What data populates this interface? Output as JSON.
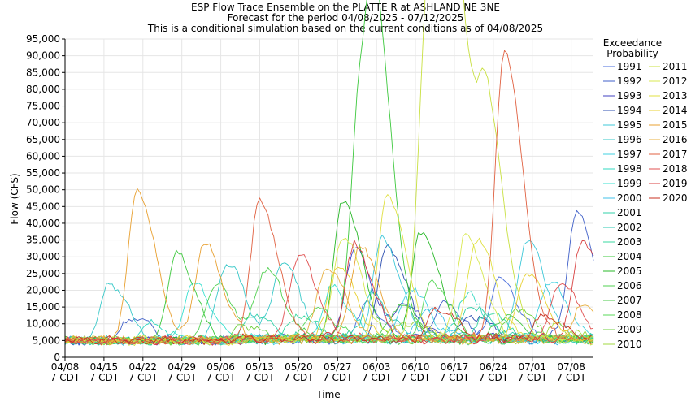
{
  "chart_data": {
    "type": "line",
    "title": "ESP Flow Trace Ensemble on the PLATTE R at ASHLAND NE 3NE",
    "subtitle": "Forecast for the period 04/08/2025 - 07/12/2025",
    "subtitle2": "This is a conditional simulation based on the current conditions as of 04/08/2025",
    "xlabel": "Time",
    "ylabel": "Flow (CFS)",
    "legend_title": "Exceedance\nProbability",
    "legend_position": "right",
    "x_start": "2025-04-08",
    "x_end": "2025-07-12",
    "ylim": [
      0,
      95000
    ],
    "yticks": [
      0,
      5000,
      10000,
      15000,
      20000,
      25000,
      30000,
      35000,
      40000,
      45000,
      50000,
      55000,
      60000,
      65000,
      70000,
      75000,
      80000,
      85000,
      90000,
      95000
    ],
    "ytick_labels": [
      "0",
      "5,000",
      "10,000",
      "15,000",
      "20,000",
      "25,000",
      "30,000",
      "35,000",
      "40,000",
      "45,000",
      "50,000",
      "55,000",
      "60,000",
      "65,000",
      "70,000",
      "75,000",
      "80,000",
      "85,000",
      "90,000",
      "95,000"
    ],
    "xticks": [
      {
        "date": "2025-04-08",
        "line1": "04/08",
        "line2": "7 CDT"
      },
      {
        "date": "2025-04-15",
        "line1": "04/15",
        "line2": "7 CDT"
      },
      {
        "date": "2025-04-22",
        "line1": "04/22",
        "line2": "7 CDT"
      },
      {
        "date": "2025-04-29",
        "line1": "04/29",
        "line2": "7 CDT"
      },
      {
        "date": "2025-05-06",
        "line1": "05/06",
        "line2": "7 CDT"
      },
      {
        "date": "2025-05-13",
        "line1": "05/13",
        "line2": "7 CDT"
      },
      {
        "date": "2025-05-20",
        "line1": "05/20",
        "line2": "7 CDT"
      },
      {
        "date": "2025-05-27",
        "line1": "05/27",
        "line2": "7 CDT"
      },
      {
        "date": "2025-06-03",
        "line1": "06/03",
        "line2": "7 CDT"
      },
      {
        "date": "2025-06-10",
        "line1": "06/10",
        "line2": "7 CDT"
      },
      {
        "date": "2025-06-17",
        "line1": "06/17",
        "line2": "7 CDT"
      },
      {
        "date": "2025-06-24",
        "line1": "06/24",
        "line2": "7 CDT"
      },
      {
        "date": "2025-07-01",
        "line1": "07/01",
        "line2": "7 CDT"
      },
      {
        "date": "2025-07-08",
        "line1": "07/08",
        "line2": "7 CDT"
      }
    ],
    "grid": true,
    "base_flow": 5000,
    "series": [
      {
        "name": "1991",
        "color": "#4a6edc",
        "peaks": [
          [
            "2025-06-25",
            23000
          ],
          [
            "2025-06-01",
            15000
          ]
        ]
      },
      {
        "name": "1992",
        "color": "#3f5fc8",
        "peaks": [
          [
            "2025-07-09",
            43000
          ],
          [
            "2025-04-20",
            12000
          ],
          [
            "2025-06-15",
            16000
          ]
        ]
      },
      {
        "name": "1993",
        "color": "#4040c0",
        "peaks": [
          [
            "2025-05-30",
            32000
          ],
          [
            "2025-06-08",
            15000
          ]
        ]
      },
      {
        "name": "1994",
        "color": "#2d4fb0",
        "peaks": [
          [
            "2025-06-05",
            33000
          ],
          [
            "2025-06-20",
            12000
          ]
        ]
      },
      {
        "name": "1995",
        "color": "#3fc8d8",
        "peaks": [
          [
            "2025-06-04",
            35000
          ],
          [
            "2025-06-30",
            35000
          ]
        ]
      },
      {
        "name": "1996",
        "color": "#38c8c8",
        "peaks": [
          [
            "2025-04-16",
            22000
          ],
          [
            "2025-05-07",
            28000
          ],
          [
            "2025-05-17",
            28000
          ]
        ]
      },
      {
        "name": "1997",
        "color": "#40d0e0",
        "peaks": [
          [
            "2025-06-09",
            20000
          ],
          [
            "2025-07-04",
            22000
          ]
        ]
      },
      {
        "name": "1998",
        "color": "#30d8c0",
        "peaks": [
          [
            "2025-06-19",
            18000
          ],
          [
            "2025-04-23",
            10000
          ]
        ]
      },
      {
        "name": "1999",
        "color": "#38e0d0",
        "peaks": [
          [
            "2025-05-01",
            22000
          ],
          [
            "2025-05-26",
            20000
          ]
        ]
      },
      {
        "name": "2000",
        "color": "#40c0e8",
        "peaks": [
          [
            "2025-06-12",
            14000
          ]
        ]
      },
      {
        "name": "2001",
        "color": "#30d0a8",
        "peaks": [
          [
            "2025-06-20",
            15000
          ],
          [
            "2025-05-12",
            12000
          ]
        ]
      },
      {
        "name": "2002",
        "color": "#28c8b0",
        "peaks": [
          [
            "2025-06-02",
            18000
          ]
        ]
      },
      {
        "name": "2003",
        "color": "#38d8a0",
        "peaks": [
          [
            "2025-06-23",
            13000
          ],
          [
            "2025-05-20",
            12000
          ]
        ]
      },
      {
        "name": "2004",
        "color": "#3cc83c",
        "peaks": [
          [
            "2025-05-31",
            76000
          ],
          [
            "2025-06-03",
            69000
          ],
          [
            "2025-04-28",
            31000
          ]
        ]
      },
      {
        "name": "2005",
        "color": "#28b828",
        "peaks": [
          [
            "2025-05-28",
            47000
          ],
          [
            "2025-06-11",
            37000
          ]
        ]
      },
      {
        "name": "2006",
        "color": "#50d050",
        "peaks": [
          [
            "2025-05-14",
            26000
          ],
          [
            "2025-05-05",
            22000
          ]
        ]
      },
      {
        "name": "2007",
        "color": "#48c848",
        "peaks": [
          [
            "2025-06-07",
            15000
          ],
          [
            "2025-06-26",
            12000
          ]
        ]
      },
      {
        "name": "2008",
        "color": "#58d858",
        "peaks": [
          [
            "2025-06-13",
            22000
          ],
          [
            "2025-05-23",
            14000
          ]
        ]
      },
      {
        "name": "2009",
        "color": "#70d040",
        "peaks": [
          [
            "2025-06-28",
            14000
          ],
          [
            "2025-05-10",
            9000
          ]
        ]
      },
      {
        "name": "2010",
        "color": "#a0d840",
        "peaks": [
          [
            "2025-06-08",
            10000
          ],
          [
            "2025-07-05",
            9000
          ]
        ]
      },
      {
        "name": "2011",
        "color": "#c8e040",
        "peaks": [
          [
            "2025-06-12",
            81000
          ],
          [
            "2025-06-14",
            82000
          ],
          [
            "2025-06-18",
            71000
          ],
          [
            "2025-06-23",
            62000
          ]
        ]
      },
      {
        "name": "2012",
        "color": "#d8e850",
        "peaks": [
          [
            "2025-05-28",
            36000
          ],
          [
            "2025-06-19",
            36000
          ]
        ]
      },
      {
        "name": "2013",
        "color": "#e0e040",
        "peaks": [
          [
            "2025-06-05",
            48000
          ],
          [
            "2025-06-21",
            35000
          ]
        ]
      },
      {
        "name": "2014",
        "color": "#e8d030",
        "peaks": [
          [
            "2025-05-27",
            27000
          ],
          [
            "2025-06-30",
            25000
          ]
        ]
      },
      {
        "name": "2015",
        "color": "#e8a030",
        "peaks": [
          [
            "2025-04-21",
            50000
          ],
          [
            "2025-05-03",
            34000
          ],
          [
            "2025-05-31",
            33000
          ]
        ]
      },
      {
        "name": "2016",
        "color": "#e8b040",
        "peaks": [
          [
            "2025-05-25",
            27000
          ],
          [
            "2025-07-10",
            15000
          ]
        ]
      },
      {
        "name": "2017",
        "color": "#e06040",
        "peaks": [
          [
            "2025-06-26",
            91000
          ],
          [
            "2025-05-13",
            46000
          ]
        ]
      },
      {
        "name": "2018",
        "color": "#e05050",
        "peaks": [
          [
            "2025-05-20",
            30000
          ],
          [
            "2025-07-06",
            22000
          ]
        ]
      },
      {
        "name": "2019",
        "color": "#d84040",
        "peaks": [
          [
            "2025-05-30",
            33000
          ],
          [
            "2025-07-10",
            35000
          ]
        ]
      },
      {
        "name": "2020",
        "color": "#c83020",
        "peaks": [
          [
            "2025-06-14",
            14000
          ],
          [
            "2025-07-03",
            12000
          ]
        ]
      }
    ]
  }
}
